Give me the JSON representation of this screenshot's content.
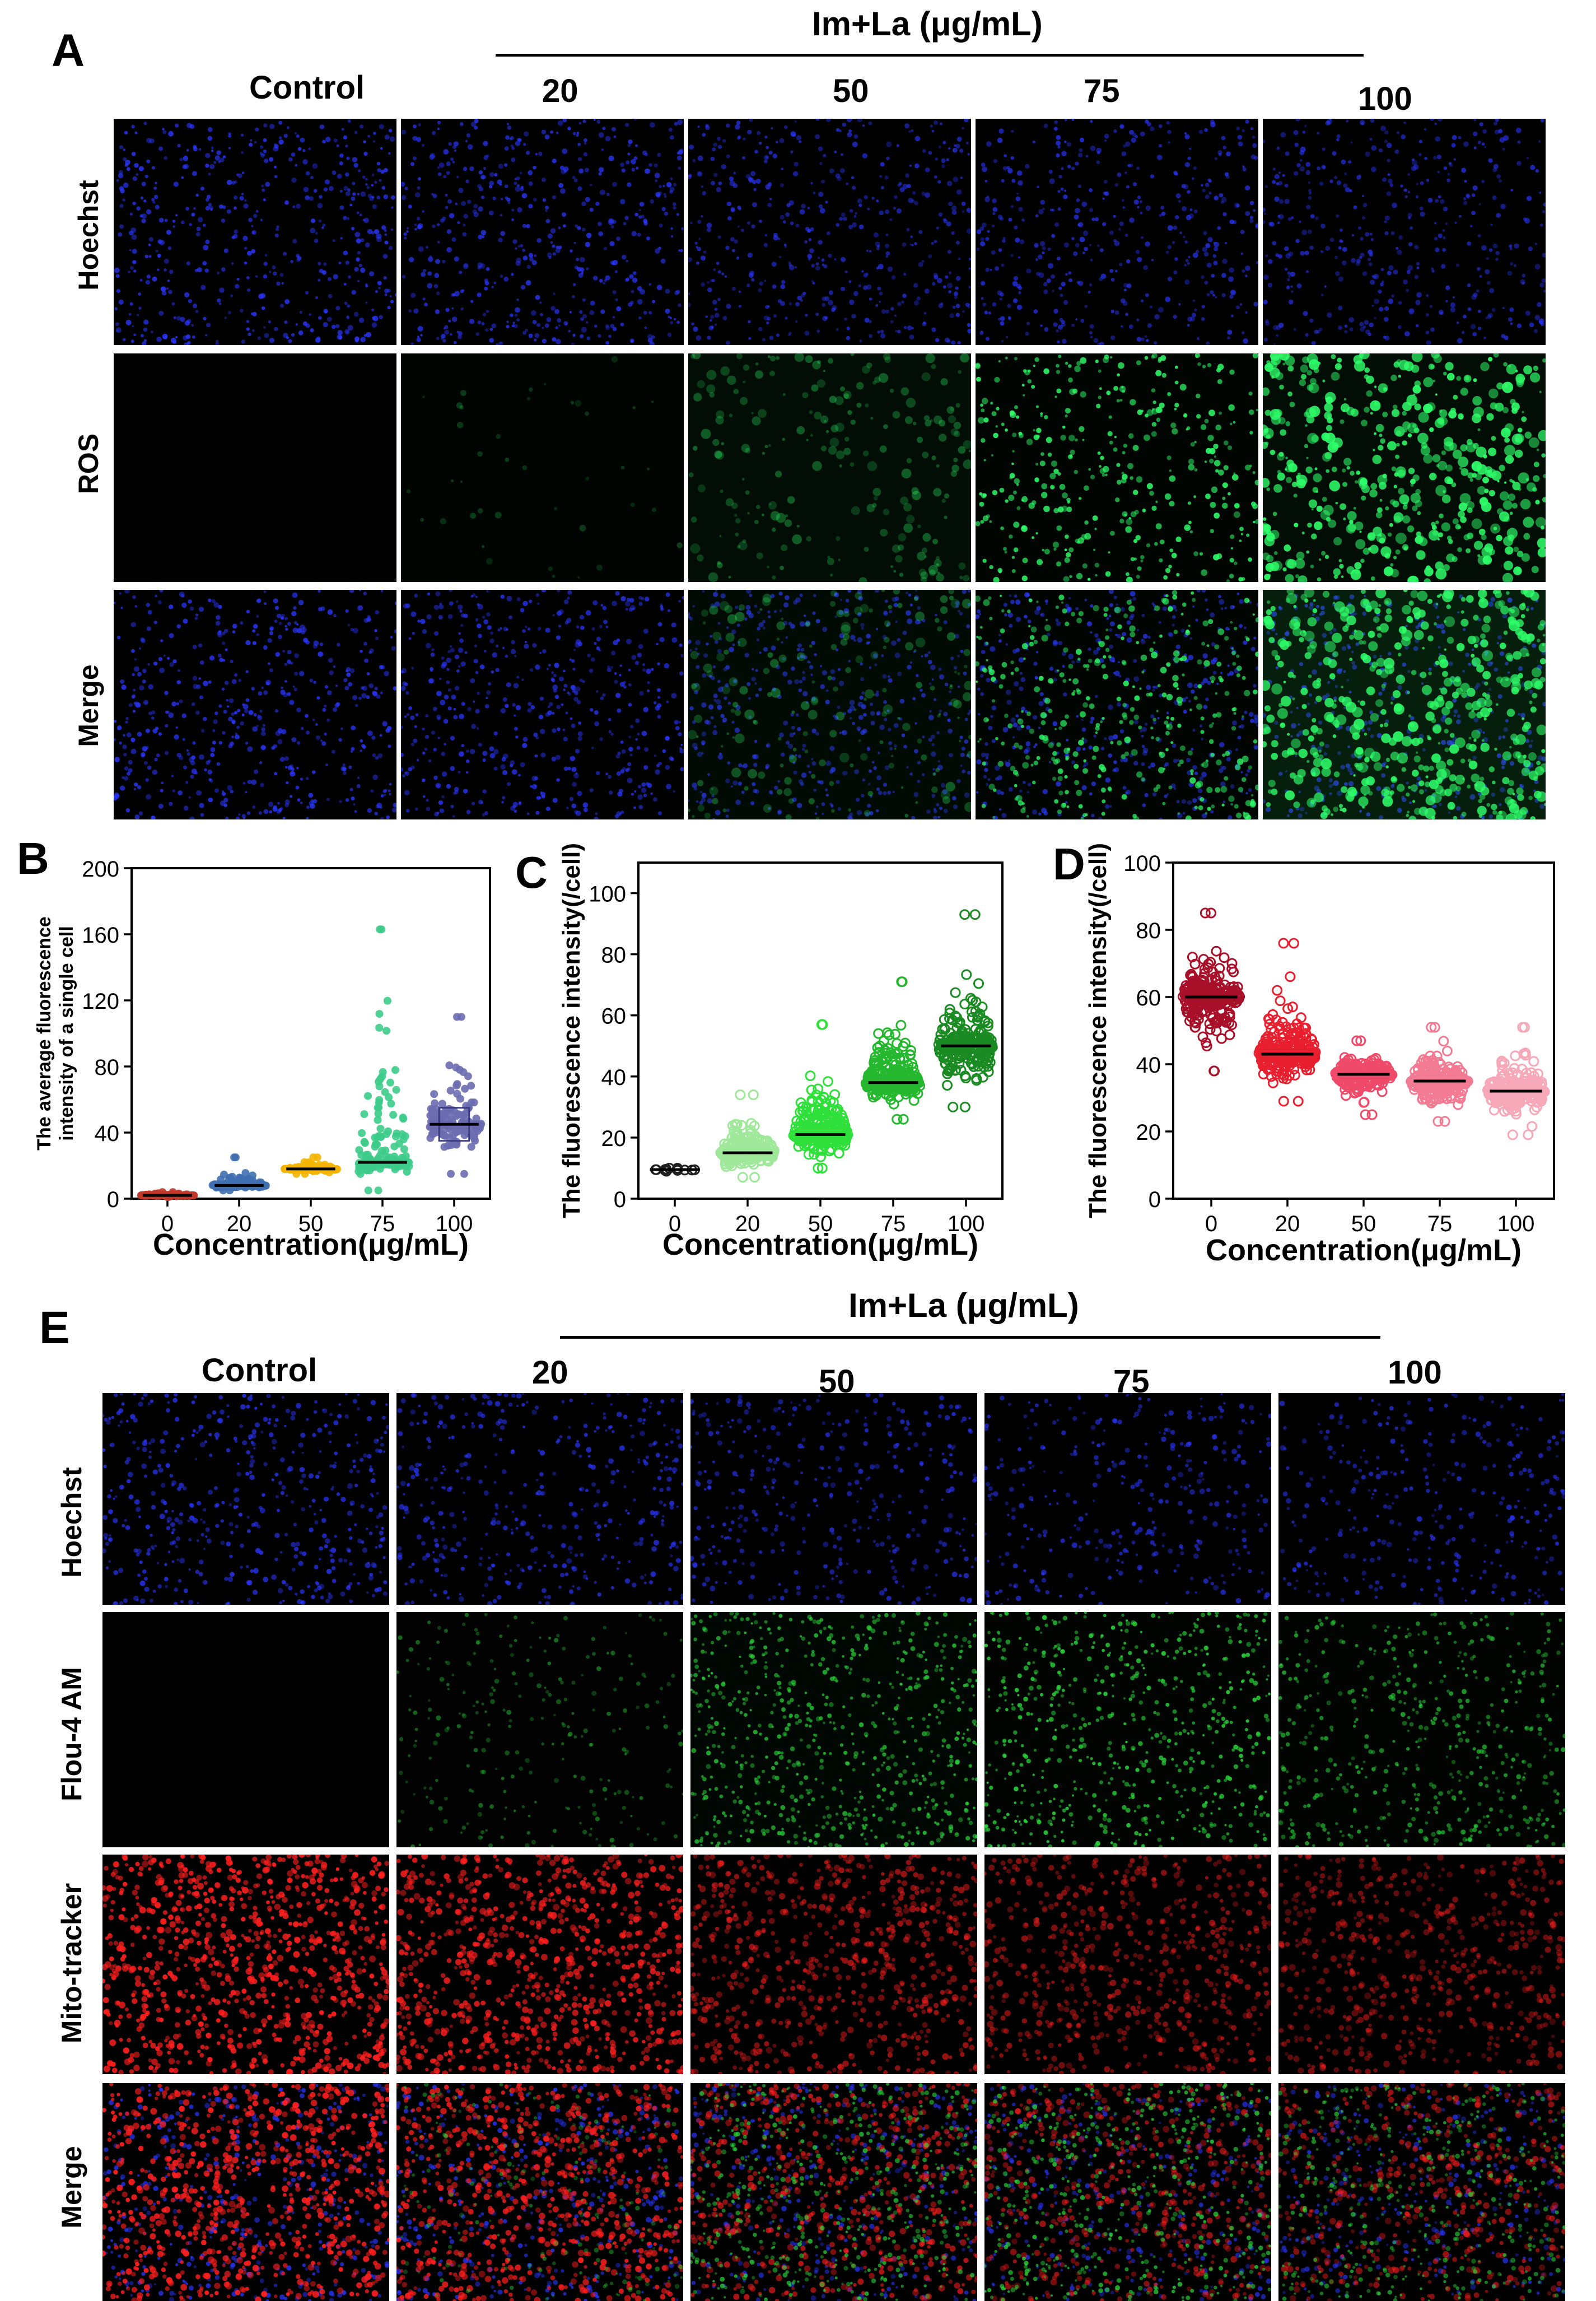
{
  "figure": {
    "panel_a": {
      "letter": "A",
      "header": "Im+La (μg/mL)",
      "columns": [
        "Control",
        "20",
        "50",
        "75",
        "100"
      ],
      "rows": [
        "Hoechst",
        "ROS",
        "Merge"
      ]
    },
    "panel_e": {
      "letter": "E",
      "header": "Im+La (μg/mL)",
      "columns": [
        "Control",
        "20",
        "50",
        "75",
        "100"
      ],
      "rows": [
        "Hoechst",
        "Flou-4 AM",
        "Mito-tracker",
        "Merge"
      ]
    },
    "colors": {
      "hoechst": "#2a36ff",
      "ros": "#2fff6a",
      "flou4": "#2bd43a",
      "mito": "#ff1f1f",
      "background": "#000000"
    }
  },
  "chart_data": [
    {
      "letter": "B",
      "type": "scatter",
      "title": "",
      "xlabel": "Concentration(μg/mL)",
      "ylabel": "The average fluorescence intensity of a single cell",
      "ylabel_lines": [
        "The average fluorescence",
        "intensity of a single cell"
      ],
      "categories": [
        "0",
        "20",
        "50",
        "75",
        "100"
      ],
      "ylim": [
        0,
        200
      ],
      "yticks": [
        "0",
        "40",
        "80",
        "120",
        "160",
        "200"
      ],
      "means": [
        2,
        8,
        18,
        22,
        45
      ],
      "spread_min": [
        1,
        5,
        15,
        5,
        15
      ],
      "spread_max": [
        4,
        25,
        25,
        163,
        110
      ],
      "colors": [
        "#c0392b",
        "#3f6fb0",
        "#f4b400",
        "#3ccb8a",
        "#6b6bb0"
      ]
    },
    {
      "letter": "C",
      "type": "scatter",
      "title": "",
      "xlabel": "Concentration(μg/mL)",
      "ylabel": "The fluorescence intensity(/cell)",
      "categories": [
        "0",
        "20",
        "50",
        "75",
        "100"
      ],
      "ylim": [
        0,
        110
      ],
      "yticks": [
        "0",
        "20",
        "40",
        "60",
        "80",
        "100"
      ],
      "means": [
        9.5,
        15,
        21,
        38,
        50
      ],
      "spread_min": [
        9,
        7,
        10,
        26,
        30
      ],
      "spread_max": [
        10,
        34,
        57,
        71,
        93
      ],
      "colors": [
        "#202020",
        "#9fe89a",
        "#2fe03a",
        "#25b82f",
        "#1a8a22"
      ]
    },
    {
      "letter": "D",
      "type": "scatter",
      "title": "",
      "xlabel": "Concentration(μg/mL)",
      "ylabel": "The fluorescence intensity(/cell)",
      "categories": [
        "0",
        "20",
        "50",
        "75",
        "100"
      ],
      "ylim": [
        0,
        100
      ],
      "yticks": [
        "0",
        "20",
        "40",
        "60",
        "80",
        "100"
      ],
      "means": [
        60,
        43,
        37,
        35,
        32
      ],
      "spread_min": [
        38,
        29,
        25,
        23,
        19
      ],
      "spread_max": [
        85,
        76,
        47,
        51,
        51
      ],
      "colors": [
        "#a8102a",
        "#e81f2e",
        "#f04a6a",
        "#f27a92",
        "#f7a8b8"
      ]
    }
  ]
}
